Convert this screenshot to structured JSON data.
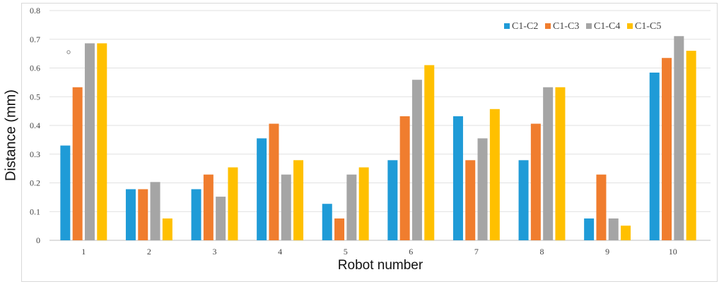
{
  "chart_data": {
    "type": "bar",
    "title": "",
    "xlabel": "Robot number",
    "ylabel": "Distance (mm)",
    "ylim": [
      0,
      0.8
    ],
    "yticks": [
      "0",
      "0.1",
      "0.2",
      "0.3",
      "0.4",
      "0.5",
      "0.6",
      "0.7",
      "0.8"
    ],
    "grid": true,
    "legend_position": "top-right",
    "categories": [
      "1",
      "2",
      "3",
      "4",
      "5",
      "6",
      "7",
      "8",
      "9",
      "10"
    ],
    "series": [
      {
        "name": "C1-C2",
        "color": "#1f9bd7",
        "values": [
          0.33,
          0.178,
          0.178,
          0.355,
          0.127,
          0.279,
          0.432,
          0.279,
          0.076,
          0.584
        ]
      },
      {
        "name": "C1-C3",
        "color": "#f07d2e",
        "values": [
          0.533,
          0.178,
          0.229,
          0.406,
          0.076,
          0.432,
          0.279,
          0.406,
          0.229,
          0.635
        ]
      },
      {
        "name": "C1-C4",
        "color": "#a5a5a5",
        "values": [
          0.686,
          0.203,
          0.152,
          0.229,
          0.229,
          0.559,
          0.355,
          0.533,
          0.076,
          0.711
        ]
      },
      {
        "name": "C1-C5",
        "color": "#ffc000",
        "values": [
          0.686,
          0.076,
          0.254,
          0.279,
          0.254,
          0.61,
          0.457,
          0.533,
          0.051,
          0.66
        ]
      }
    ]
  }
}
